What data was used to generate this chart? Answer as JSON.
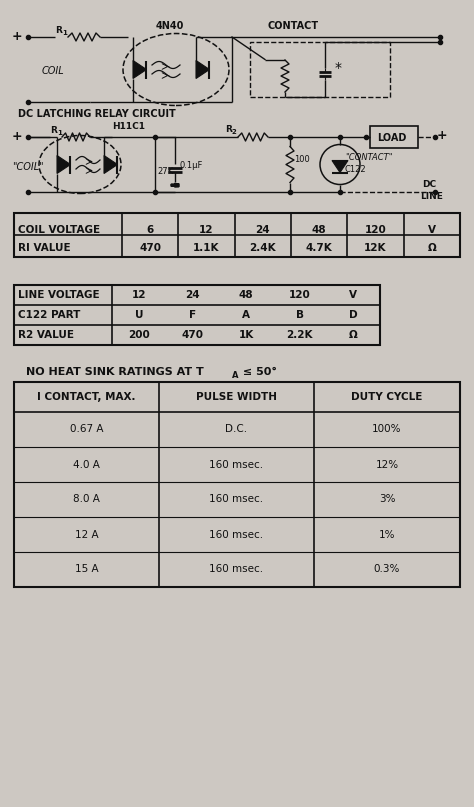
{
  "bg_color": "#cdc8c2",
  "table1": {
    "headers": [
      "COIL VOLTAGE",
      "6",
      "12",
      "24",
      "48",
      "120",
      "V"
    ],
    "row2": [
      "RI VALUE",
      "470",
      "1.1K",
      "2.4K",
      "4.7K",
      "12K",
      "Ω"
    ]
  },
  "table2": {
    "headers": [
      "LINE VOLTAGE",
      "12",
      "24",
      "48",
      "120",
      "V"
    ],
    "row2": [
      "C122 PART",
      "U",
      "F",
      "A",
      "B",
      "D"
    ],
    "row3": [
      "R2 VALUE",
      "200",
      "470",
      "1K",
      "2.2K",
      "Ω"
    ]
  },
  "table3_title": "NO HEAT SINK RATINGS AT T",
  "table3_title_sub": "A",
  "table3_title_end": " ≤ 50°",
  "table3": {
    "headers": [
      "I CONTACT, MAX.",
      "PULSE WIDTH",
      "DUTY CYCLE"
    ],
    "rows": [
      [
        "0.67 A",
        "D.C.",
        "100%"
      ],
      [
        "4.0 A",
        "160 msec.",
        "12%"
      ],
      [
        "8.0 A",
        "160 msec.",
        "3%"
      ],
      [
        "12 A",
        "160 msec.",
        "1%"
      ],
      [
        "15 A",
        "160 msec.",
        "0.3%"
      ]
    ]
  }
}
